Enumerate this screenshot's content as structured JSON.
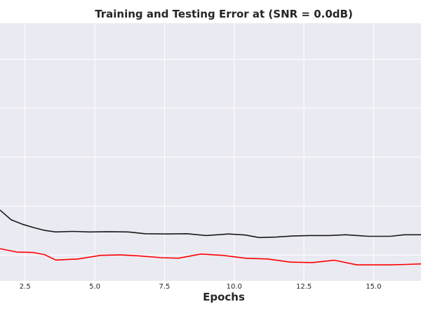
{
  "chart_data": {
    "type": "line",
    "title": "Training and Testing Error at (SNR = 0.0dB)",
    "xlabel": "Epochs",
    "ylabel": "",
    "xlim": [
      1.6,
      16.7
    ],
    "ylim": [
      0,
      1
    ],
    "xticks": [
      2.5,
      5.0,
      7.5,
      10.0,
      12.5,
      15.0
    ],
    "xtick_labels": [
      "2.5",
      "5.0",
      "7.5",
      "10.0",
      "12.5",
      "15.0"
    ],
    "yticks": [
      0.1,
      0.29,
      0.48,
      0.67,
      0.86
    ],
    "grid": true,
    "colors": {
      "background": "#eaeaf2",
      "grid": "#ffffff",
      "text": "#262626"
    },
    "series": [
      {
        "color": "#1a1a1a",
        "x": [
          1.6,
          2.0,
          2.4,
          2.8,
          3.2,
          3.6,
          4.2,
          4.8,
          5.5,
          6.2,
          6.8,
          7.6,
          8.3,
          9.0,
          9.8,
          10.4,
          10.9,
          11.5,
          12.1,
          12.7,
          13.4,
          14.0,
          14.8,
          15.6,
          16.1,
          16.7
        ],
        "y": [
          0.275,
          0.237,
          0.22,
          0.207,
          0.196,
          0.19,
          0.192,
          0.19,
          0.191,
          0.19,
          0.183,
          0.182,
          0.183,
          0.176,
          0.182,
          0.178,
          0.168,
          0.17,
          0.174,
          0.176,
          0.176,
          0.179,
          0.173,
          0.173,
          0.179,
          0.179
        ]
      },
      {
        "color": "#ff0000",
        "x": [
          1.6,
          2.2,
          2.8,
          3.2,
          3.6,
          4.4,
          5.2,
          5.9,
          6.6,
          7.4,
          8.0,
          8.8,
          9.6,
          10.4,
          11.2,
          12.0,
          12.8,
          13.6,
          14.4,
          15.0,
          15.6,
          16.2,
          16.7
        ],
        "y": [
          0.125,
          0.112,
          0.11,
          0.102,
          0.081,
          0.085,
          0.099,
          0.101,
          0.097,
          0.09,
          0.088,
          0.104,
          0.099,
          0.088,
          0.085,
          0.073,
          0.071,
          0.08,
          0.062,
          0.062,
          0.062,
          0.064,
          0.066
        ]
      }
    ]
  }
}
